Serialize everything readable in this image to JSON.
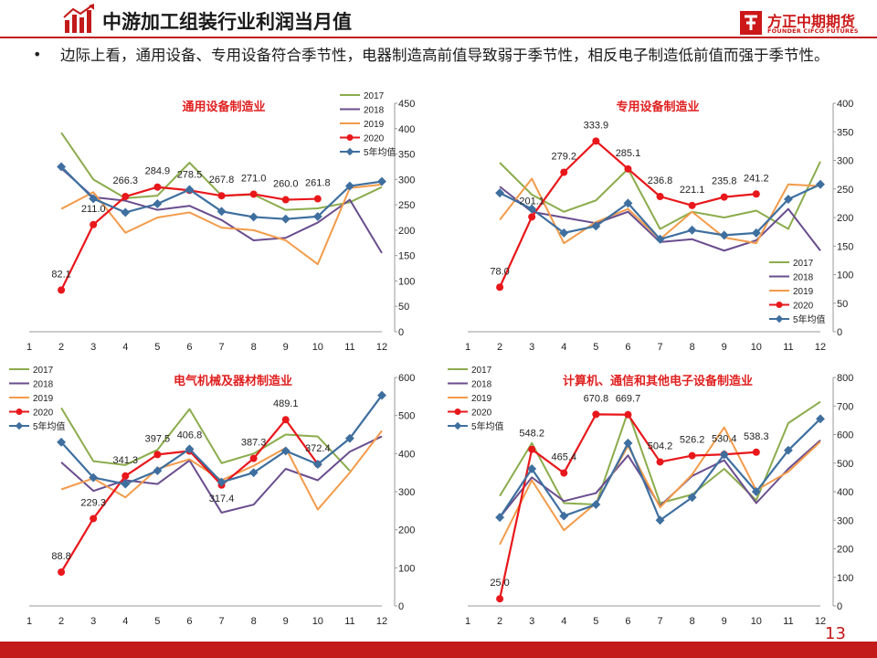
{
  "header": {
    "title": "中游加工组装行业利润当月值",
    "logo_cn": "方正中期期货",
    "logo_en": "FOUNDER CIFCO FUTURES"
  },
  "commentary": "边际上看，通用设备、专用设备符合季节性，电器制造高前值导致弱于季节性，相反电子制造低前值而强于季节性。",
  "page_number": "13",
  "colors": {
    "2017": "#8bac4c",
    "2018": "#6a4d8e",
    "2019": "#f39b4a",
    "2020": "#e8171b",
    "avg5": "#3e6f9f",
    "accent": "#c31a1a"
  },
  "chart_data": [
    {
      "type": "line",
      "title": "通用设备制造业",
      "x": [
        1,
        2,
        3,
        4,
        5,
        6,
        7,
        8,
        9,
        10,
        11,
        12
      ],
      "ylim": [
        0,
        450
      ],
      "yticks": [
        0,
        50,
        100,
        150,
        200,
        250,
        300,
        350,
        400,
        450
      ],
      "y_axis_side": "right",
      "legend_position": "top-right",
      "series": [
        {
          "name": "2017",
          "values": [
            null,
            392,
            300,
            263,
            268,
            333,
            268,
            270,
            240,
            243,
            255,
            285
          ]
        },
        {
          "name": "2018",
          "values": [
            null,
            322,
            265,
            258,
            240,
            248,
            220,
            180,
            185,
            215,
            260,
            155
          ]
        },
        {
          "name": "2019",
          "values": [
            null,
            242,
            275,
            195,
            225,
            235,
            205,
            200,
            180,
            133,
            283,
            290
          ]
        },
        {
          "name": "2020",
          "values": [
            null,
            82.1,
            211.0,
            266.3,
            284.9,
            278.5,
            267.8,
            271.0,
            260.0,
            261.8,
            null,
            null
          ]
        },
        {
          "name": "5年均值",
          "values": [
            null,
            325,
            262,
            235,
            252,
            280,
            237,
            226,
            222,
            227,
            287,
            296
          ]
        }
      ],
      "data_labels": [
        "",
        "82.1",
        "211.0",
        "266.3",
        "284.9",
        "278.5",
        "267.8",
        "271.0",
        "260.0",
        "261.8",
        "",
        ""
      ]
    },
    {
      "type": "line",
      "title": "专用设备制造业",
      "x": [
        1,
        2,
        3,
        4,
        5,
        6,
        7,
        8,
        9,
        10,
        11,
        12
      ],
      "ylim": [
        0,
        400
      ],
      "yticks": [
        0,
        50,
        100,
        150,
        200,
        250,
        300,
        350,
        400
      ],
      "y_axis_side": "right",
      "legend_position": "bottom-right",
      "series": [
        {
          "name": "2017",
          "values": [
            null,
            296,
            240,
            210,
            230,
            285,
            180,
            210,
            200,
            212,
            180,
            298
          ]
        },
        {
          "name": "2018",
          "values": [
            null,
            254,
            210,
            200,
            190,
            210,
            157,
            162,
            142,
            160,
            215,
            142
          ]
        },
        {
          "name": "2019",
          "values": [
            null,
            196,
            268,
            155,
            192,
            215,
            162,
            210,
            165,
            155,
            258,
            255
          ]
        },
        {
          "name": "2020",
          "values": [
            null,
            78.0,
            201.1,
            279.2,
            333.9,
            285.1,
            236.8,
            221.1,
            235.8,
            241.2,
            null,
            null
          ]
        },
        {
          "name": "5年均值",
          "values": [
            null,
            243,
            215,
            173,
            185,
            225,
            162,
            178,
            169,
            173,
            232,
            258
          ]
        }
      ],
      "data_labels": [
        "",
        "78.0",
        "201.1",
        "279.2",
        "333.9",
        "285.1",
        "236.8",
        "221.1",
        "235.8",
        "241.2",
        "",
        ""
      ]
    },
    {
      "type": "line",
      "title": "电气机械及器材制造业",
      "x": [
        1,
        2,
        3,
        4,
        5,
        6,
        7,
        8,
        9,
        10,
        11,
        12
      ],
      "ylim": [
        0,
        600
      ],
      "yticks": [
        0,
        100,
        200,
        300,
        400,
        500,
        600
      ],
      "y_axis_side": "right",
      "legend_position": "top-left",
      "series": [
        {
          "name": "2017",
          "values": [
            null,
            520,
            380,
            370,
            410,
            517,
            375,
            400,
            450,
            445,
            355,
            null
          ]
        },
        {
          "name": "2018",
          "values": [
            null,
            377,
            302,
            330,
            320,
            382,
            245,
            266,
            360,
            330,
            405,
            445
          ]
        },
        {
          "name": "2019",
          "values": [
            null,
            306,
            335,
            285,
            360,
            385,
            330,
            368,
            415,
            253,
            350,
            460
          ]
        },
        {
          "name": "2020",
          "values": [
            null,
            88.8,
            229.3,
            341.3,
            397.5,
            406.8,
            317.4,
            387.3,
            489.1,
            372.4,
            null,
            null
          ]
        },
        {
          "name": "5年均值",
          "values": [
            null,
            430,
            337,
            320,
            355,
            412,
            325,
            350,
            407,
            372,
            440,
            553
          ]
        }
      ],
      "data_labels": [
        "",
        "88.8",
        "229.3",
        "341.3",
        "397.5",
        "406.8",
        "317.4",
        "387.3",
        "489.1",
        "372.4",
        "",
        ""
      ]
    },
    {
      "type": "line",
      "title": "计算机、通信和其他电子设备制造业",
      "x": [
        1,
        2,
        3,
        4,
        5,
        6,
        7,
        8,
        9,
        10,
        11,
        12
      ],
      "ylim": [
        0,
        800
      ],
      "yticks": [
        0,
        100,
        200,
        300,
        400,
        500,
        600,
        700,
        800
      ],
      "y_axis_side": "right",
      "legend_position": "top-left",
      "series": [
        {
          "name": "2017",
          "values": [
            null,
            385,
            570,
            360,
            355,
            680,
            360,
            390,
            480,
            370,
            640,
            715
          ]
        },
        {
          "name": "2018",
          "values": [
            null,
            310,
            450,
            367,
            395,
            527,
            350,
            455,
            510,
            360,
            480,
            580
          ]
        },
        {
          "name": "2019",
          "values": [
            null,
            215,
            440,
            265,
            360,
            560,
            345,
            460,
            625,
            405,
            470,
            575
          ]
        },
        {
          "name": "2020",
          "values": [
            null,
            25.0,
            548.2,
            465.4,
            670.8,
            669.7,
            504.2,
            526.2,
            530.4,
            538.3,
            null,
            null
          ]
        },
        {
          "name": "5年均值",
          "values": [
            null,
            310,
            480,
            315,
            355,
            570,
            300,
            380,
            530,
            400,
            545,
            655
          ]
        }
      ],
      "data_labels": [
        "",
        "25.0",
        "548.2",
        "465.4",
        "670.8",
        "669.7",
        "504.2",
        "526.2",
        "530.4",
        "538.3",
        "",
        ""
      ]
    }
  ]
}
